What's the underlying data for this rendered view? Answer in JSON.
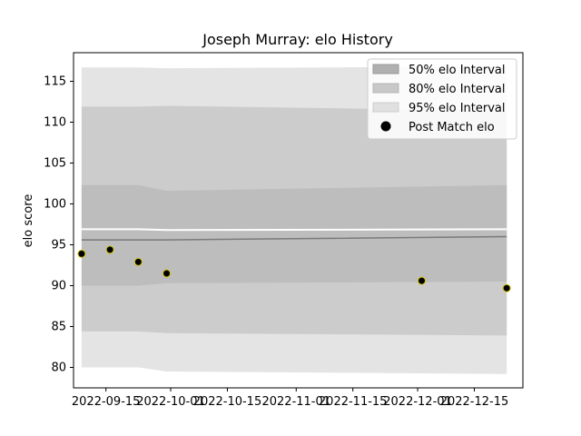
{
  "chart_data": {
    "type": "area",
    "title": "Joseph Murray: elo History",
    "xlabel": "",
    "ylabel": "elo score",
    "xlim": [
      "2022-09-07",
      "2022-12-27"
    ],
    "ylim": [
      77.5,
      118.5
    ],
    "x_ticks": [
      "2022-09-15",
      "2022-10-01",
      "2022-10-15",
      "2022-11-01",
      "2022-11-15",
      "2022-12-01",
      "2022-12-15"
    ],
    "y_ticks": [
      80,
      85,
      90,
      95,
      100,
      105,
      110,
      115
    ],
    "legend": {
      "placement": "top-right",
      "entries": [
        "50% elo Interval",
        "80% elo Interval",
        "95% elo Interval",
        "Post Match elo"
      ]
    },
    "band_x": [
      "2022-09-09",
      "2022-09-16",
      "2022-09-23",
      "2022-09-30",
      "2022-12-23"
    ],
    "bands": [
      {
        "name": "95% elo Interval",
        "color": "#e4e4e4",
        "upper": [
          116.7,
          116.7,
          116.7,
          116.6,
          116.8
        ],
        "lower": [
          80.0,
          80.0,
          80.0,
          79.5,
          79.2
        ]
      },
      {
        "name": "80% elo Interval",
        "color": "#cccccc",
        "upper": [
          111.9,
          111.9,
          111.9,
          112.0,
          111.4
        ],
        "lower": [
          84.4,
          84.4,
          84.4,
          84.2,
          83.9
        ]
      },
      {
        "name": "50% elo Interval",
        "color": "#bdbdbd",
        "upper": [
          102.3,
          102.3,
          102.3,
          101.6,
          102.3
        ],
        "lower": [
          90.0,
          90.0,
          90.0,
          90.3,
          90.5
        ]
      }
    ],
    "median_line": {
      "color": "#7a7a7a",
      "values": [
        95.6,
        95.6,
        95.6,
        95.6,
        96.0
      ]
    },
    "white_line": {
      "values": [
        96.9,
        96.9,
        96.9,
        96.8,
        96.9
      ]
    },
    "series": [
      {
        "name": "Post Match elo",
        "x": [
          "2022-09-09",
          "2022-09-16",
          "2022-09-23",
          "2022-09-30",
          "2022-12-02",
          "2022-12-23"
        ],
        "values": [
          93.9,
          94.4,
          92.9,
          91.5,
          90.6,
          89.7
        ]
      }
    ],
    "point_color": "#000000",
    "point_edge": "#d4c400",
    "grid": false
  }
}
